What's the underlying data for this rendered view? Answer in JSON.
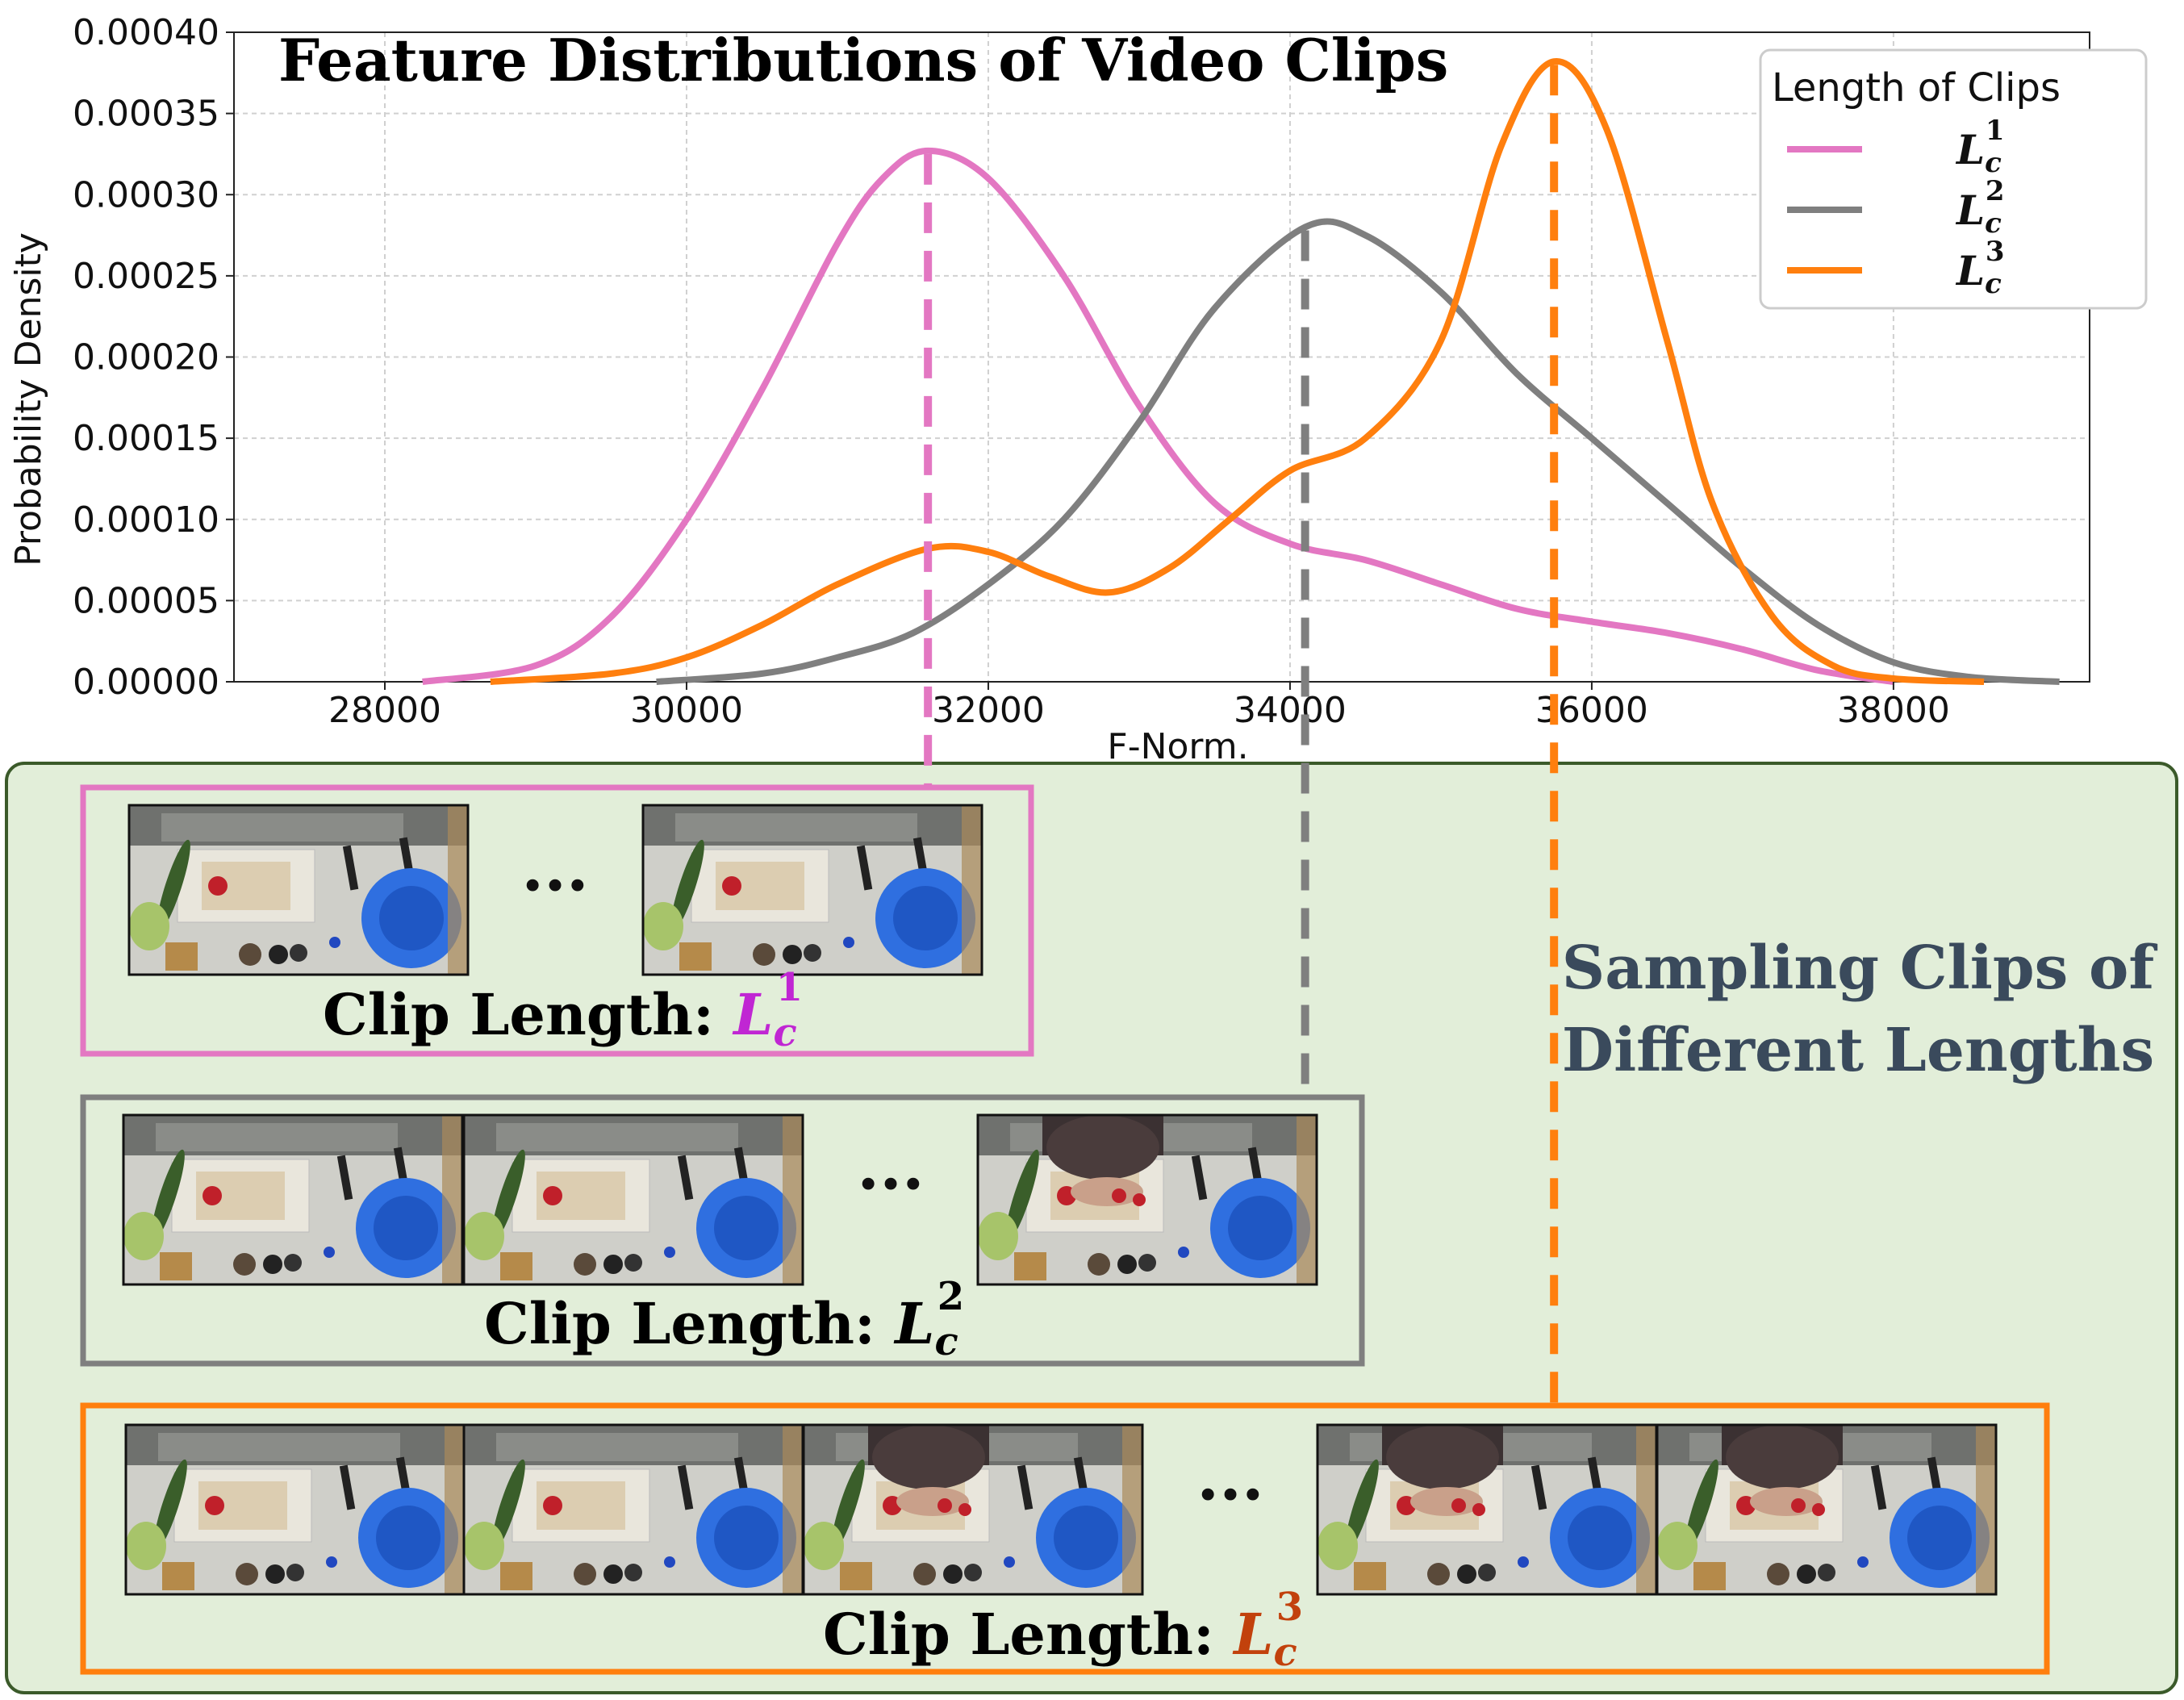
{
  "chart_data": {
    "type": "line",
    "title": "Feature Distributions of Video Clips",
    "xlabel": "F-Norm.",
    "ylabel": "Probability Density",
    "xlim": [
      27000,
      39300
    ],
    "ylim": [
      0,
      0.0004
    ],
    "xticks": [
      28000,
      30000,
      32000,
      34000,
      36000,
      38000
    ],
    "xtick_labels": [
      "28000",
      "30000",
      "32000",
      "34000",
      "36000",
      "38000"
    ],
    "yticks": [
      0,
      5e-05,
      0.0001,
      0.00015,
      0.0002,
      0.00025,
      0.0003,
      0.00035,
      0.0004
    ],
    "ytick_labels": [
      "0.00000",
      "0.00005",
      "0.00010",
      "0.00015",
      "0.00020",
      "0.00025",
      "0.00030",
      "0.00035",
      "0.00040"
    ],
    "grid": true,
    "legend": {
      "title": "Length of Clips",
      "placement": "top-right"
    },
    "series": [
      {
        "name": "L_c^1",
        "color": "#e377c2",
        "peak_x": 31600,
        "x": [
          28250,
          29000,
          29500,
          30000,
          30500,
          31000,
          31300,
          31600,
          32000,
          32500,
          33000,
          33500,
          34000,
          34500,
          35000,
          35500,
          36000,
          36500,
          37000,
          37500,
          38000
        ],
        "y": [
          0.0,
          1e-05,
          4e-05,
          0.0001,
          0.00018,
          0.00027,
          0.00031,
          0.000327,
          0.00031,
          0.00025,
          0.00017,
          0.00011,
          8.5e-05,
          7.5e-05,
          6e-05,
          4.5e-05,
          3.7e-05,
          3e-05,
          2e-05,
          7e-06,
          0.0
        ]
      },
      {
        "name": "L_c^2",
        "color": "#7f7f7f",
        "peak_x": 34100,
        "x": [
          29800,
          30500,
          31000,
          31500,
          32000,
          32500,
          33000,
          33500,
          34100,
          34500,
          35000,
          35500,
          36000,
          36500,
          37000,
          37500,
          38000,
          38500,
          39100
        ],
        "y": [
          0.0,
          5e-06,
          1.5e-05,
          3e-05,
          6e-05,
          0.0001,
          0.00016,
          0.00023,
          0.00028,
          0.000275,
          0.00024,
          0.00019,
          0.00015,
          0.00011,
          7e-05,
          3.5e-05,
          1.2e-05,
          3e-06,
          0.0
        ]
      },
      {
        "name": "L_c^3",
        "color": "#ff7f0e",
        "peak_x": 35750,
        "x": [
          28700,
          29500,
          30000,
          30500,
          31000,
          31600,
          32000,
          32400,
          32800,
          33200,
          33600,
          34000,
          34500,
          35000,
          35400,
          35750,
          36100,
          36500,
          36800,
          37200,
          37600,
          38000,
          38600
        ],
        "y": [
          0.0,
          5e-06,
          1.5e-05,
          3.5e-05,
          6e-05,
          8.2e-05,
          8e-05,
          6.5e-05,
          5.5e-05,
          7e-05,
          0.0001,
          0.00013,
          0.00015,
          0.00021,
          0.00033,
          0.000382,
          0.00034,
          0.00021,
          0.00011,
          4e-05,
          1e-05,
          2e-06,
          0.0
        ]
      }
    ]
  },
  "legend_items": [
    {
      "base": "L",
      "sub": "c",
      "sup": "1",
      "color": "#e377c2"
    },
    {
      "base": "L",
      "sub": "c",
      "sup": "2",
      "color": "#7f7f7f"
    },
    {
      "base": "L",
      "sub": "c",
      "sup": "3",
      "color": "#ff7f0e"
    }
  ],
  "panel": {
    "background": "#e2eed9",
    "border": "#3b5a2a",
    "side_text_line1": "Sampling Clips of",
    "side_text_line2": "Different Lengths",
    "side_text_color": "#3a4a5c",
    "ellipsis": "···",
    "clip_label": "Clip Length: ",
    "groups": [
      {
        "sup": "1",
        "border": "#e377c2",
        "label_color": "#c026d3",
        "frames": 2
      },
      {
        "sup": "2",
        "border": "#7f7f7f",
        "label_color": "#000000",
        "frames": 3
      },
      {
        "sup": "3",
        "border": "#ff7f0e",
        "label_color": "#c2410c",
        "frames": 5
      }
    ]
  }
}
